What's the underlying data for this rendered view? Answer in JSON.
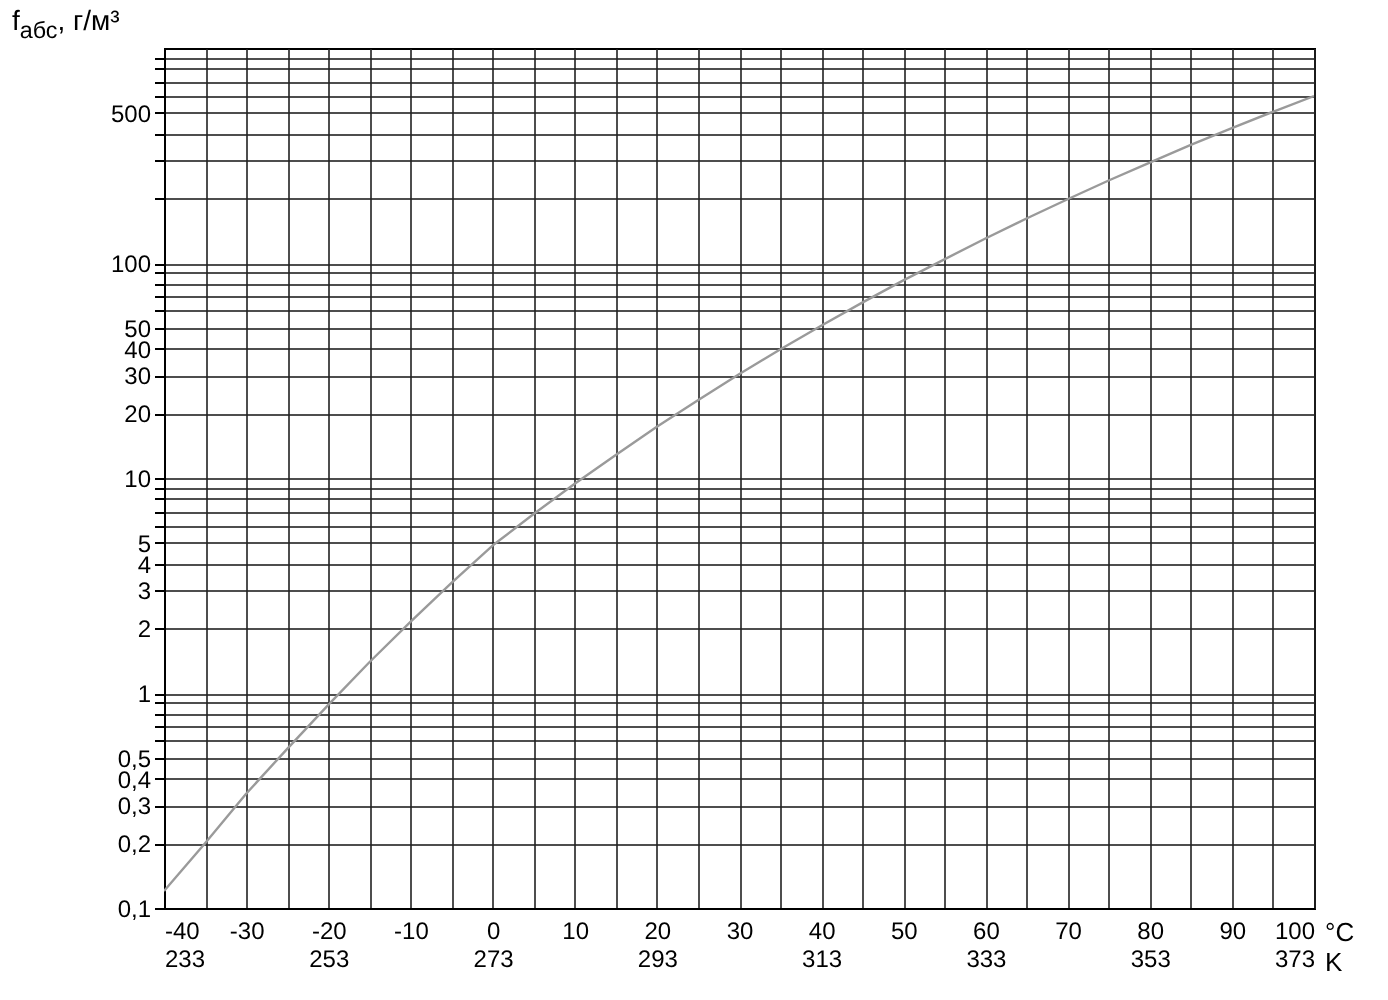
{
  "chart_data": {
    "type": "line",
    "ylabel": "f$_{абс}$, г/м³",
    "xlabel": "°C",
    "x2label": "K",
    "x": [
      -40,
      -35,
      -30,
      -25,
      -20,
      -15,
      -10,
      -5,
      0,
      5,
      10,
      15,
      20,
      25,
      30,
      35,
      40,
      45,
      50,
      55,
      60,
      65,
      70,
      75,
      80,
      85,
      90,
      95,
      100
    ],
    "series": [
      {
        "color": "#9a9a9a",
        "values": [
          0.12,
          0.2,
          0.34,
          0.55,
          0.88,
          1.39,
          2.14,
          3.25,
          4.85,
          6.8,
          9.4,
          12.8,
          17.3,
          23,
          30.4,
          39.6,
          51.1,
          65.4,
          83,
          104,
          130,
          161,
          198,
          242,
          293,
          354,
          424,
          505,
          598
        ]
      }
    ],
    "xlim": [
      -40,
      100
    ],
    "xticks": [
      -40,
      {
        "value": -35,
        "label": null
      },
      -30,
      {
        "value": -25,
        "label": null
      },
      -20,
      {
        "value": -15,
        "label": null
      },
      -10,
      {
        "value": -5,
        "label": null
      },
      0,
      {
        "value": 5,
        "label": null
      },
      10,
      {
        "value": 15,
        "label": null
      },
      20,
      {
        "value": 25,
        "label": null
      },
      30,
      {
        "value": 35,
        "label": null
      },
      40,
      {
        "value": 45,
        "label": null
      },
      50,
      {
        "value": 55,
        "label": null
      },
      60,
      {
        "value": 65,
        "label": null
      },
      70,
      {
        "value": 75,
        "label": null
      },
      80,
      {
        "value": 85,
        "label": null
      },
      90,
      {
        "value": 95,
        "label": null
      },
      100
    ],
    "x2lim": [
      233,
      373
    ],
    "x2ticks": [
      233,
      253,
      273,
      293,
      313,
      333,
      353,
      373
    ],
    "log": "y",
    "ylim": [
      0.1,
      1000
    ],
    "yticks": [
      {
        "value": 0.1,
        "label": "0,1"
      },
      {
        "value": 0.2,
        "label": "0,2"
      },
      {
        "value": 0.3,
        "label": "0,3"
      },
      {
        "value": 0.4,
        "label": "0,4"
      },
      {
        "value": 0.5,
        "label": "0,5"
      },
      {
        "value": 0.6,
        "label": null
      },
      {
        "value": 0.7,
        "label": null
      },
      {
        "value": 0.8,
        "label": null
      },
      {
        "value": 0.9,
        "label": null
      },
      1,
      2,
      3,
      4,
      5,
      {
        "value": 6,
        "label": null
      },
      {
        "value": 7,
        "label": null
      },
      {
        "value": 8,
        "label": null
      },
      {
        "value": 9,
        "label": null
      },
      10,
      20,
      30,
      40,
      50,
      {
        "value": 60,
        "label": null
      },
      {
        "value": 70,
        "label": null
      },
      {
        "value": 80,
        "label": null
      },
      {
        "value": 90,
        "label": null
      },
      100,
      {
        "value": 200,
        "label": null
      },
      {
        "value": 300,
        "label": null
      },
      {
        "value": 400,
        "label": null
      },
      500,
      {
        "value": 600,
        "label": null
      },
      {
        "value": 700,
        "label": null
      },
      {
        "value": 800,
        "label": null
      },
      {
        "value": 900,
        "label": null
      }
    ],
    "grid": true,
    "marker": "none"
  }
}
